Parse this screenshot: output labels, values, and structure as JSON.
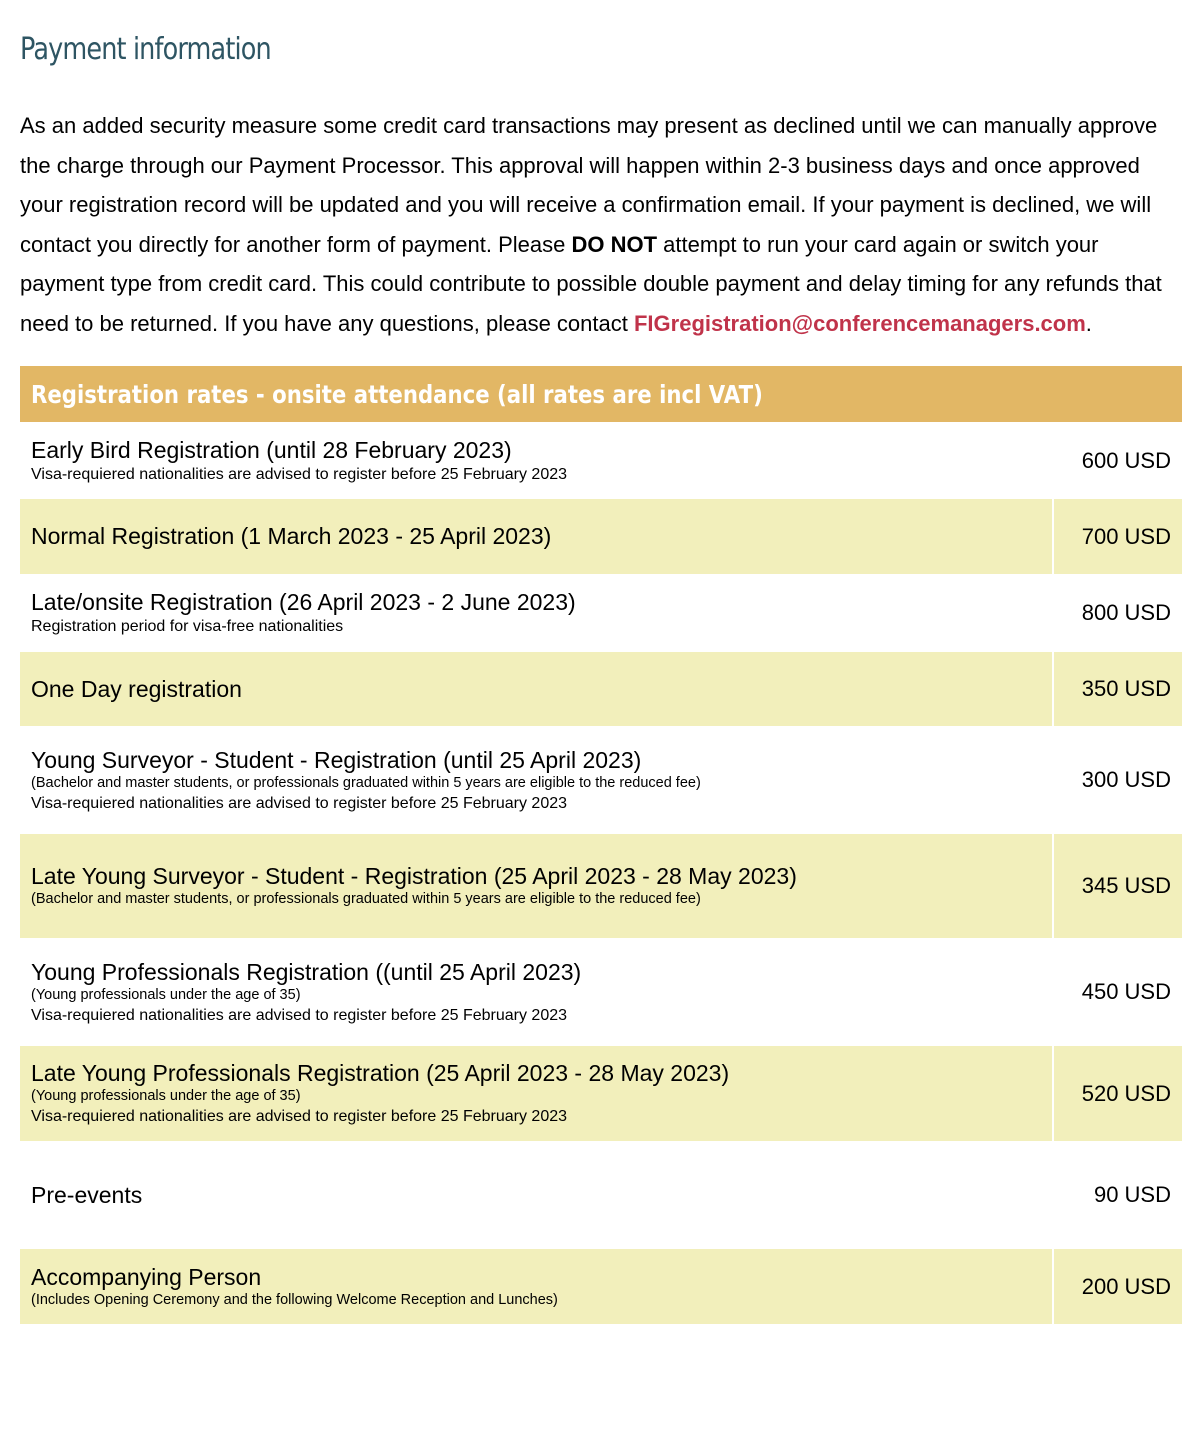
{
  "title": "Payment information",
  "intro": {
    "p1": "As an added security measure some credit card transactions may present as declined until we can manually approve the charge through our Payment Processor. This approval will happen within 2-3 business days and once approved your registration record will be updated and you will receive a confirmation email. If your payment is declined, we will contact you directly for another form of payment. Please ",
    "bold": "DO NOT",
    "p2": " attempt to run your card again or switch your payment type from credit card. This could contribute to possible double payment and delay timing for any refunds that need to be returned. If you have any questions, please contact ",
    "email": "FIGregistration@conferencemanagers.com",
    "end": "."
  },
  "table": {
    "header": "Registration rates - onsite attendance (all rates are incl VAT)",
    "rows": [
      {
        "name": "Early Bird Registration (until 28 February 2023)",
        "notes": [],
        "sub": [
          "Visa-requiered nationalities are advised to register before 25 February 2023"
        ],
        "price": "600 USD"
      },
      {
        "name": "Normal Registration (1 March 2023 - 25 April 2023)",
        "notes": [],
        "sub": [],
        "price": "700 USD"
      },
      {
        "name": "Late/onsite Registration (26 April 2023 - 2 June 2023)",
        "notes": [],
        "sub": [
          "Registration period for visa-free nationalities"
        ],
        "price": "800 USD"
      },
      {
        "name": "One Day registration",
        "notes": [],
        "sub": [],
        "price": "350 USD"
      },
      {
        "name": "Young Surveyor - Student - Registration (until 25 April 2023)",
        "notes": [
          "(Bachelor and master students, or professionals graduated within 5 years are eligible to the reduced fee)"
        ],
        "sub": [
          "Visa-requiered nationalities are advised to register before 25 February 2023"
        ],
        "price": "300 USD"
      },
      {
        "name": "Late Young Surveyor - Student - Registration (25 April 2023 - 28 May 2023)",
        "notes": [
          "(Bachelor and master students, or professionals graduated within 5 years are eligible to the reduced fee)"
        ],
        "sub": [],
        "price": "345 USD"
      },
      {
        "name": "Young Professionals Registration ((until 25 April 2023)",
        "notes": [
          "(Young professionals under the age of 35)"
        ],
        "sub": [
          "Visa-requiered nationalities are advised to register before 25 February 2023"
        ],
        "price": "450 USD"
      },
      {
        "name": "Late Young Professionals Registration (25 April 2023 - 28 May 2023)",
        "notes": [
          "(Young professionals under the age of 35)"
        ],
        "sub": [
          "Visa-requiered nationalities are advised to register before 25 February 2023"
        ],
        "price": "520 USD"
      },
      {
        "name": "Pre-events",
        "notes": [],
        "sub": [],
        "price": "90 USD"
      },
      {
        "name": "Accompanying Person",
        "notes": [
          "(Includes Opening Ceremony and the following Welcome Reception and Lunches)"
        ],
        "sub": [],
        "price": "200 USD"
      }
    ]
  }
}
